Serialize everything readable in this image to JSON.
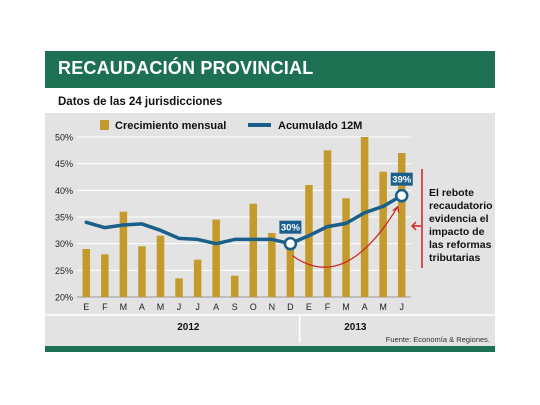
{
  "header": {
    "title": "RECAUDACIÓN PROVINCIAL"
  },
  "subtitle": "Datos de las 24 jurisdicciones",
  "source": "Fuente: Economía & Regiones.",
  "annotation": {
    "lines": [
      "El rebote",
      "recaudatorio",
      "evidencia el",
      "impacto de",
      "las reformas",
      "tributarias"
    ]
  },
  "colors": {
    "bar": "#c49a2c",
    "line": "#1a5f8a",
    "header": "#1d7152",
    "arrow": "#cc2222"
  },
  "chart_data": {
    "type": "bar",
    "title": "",
    "categories": [
      "E",
      "F",
      "M",
      "A",
      "M",
      "J",
      "J",
      "A",
      "S",
      "O",
      "N",
      "D",
      "E",
      "F",
      "M",
      "A",
      "M",
      "J"
    ],
    "year_groups": [
      {
        "label": "2012",
        "count": 12
      },
      {
        "label": "2013",
        "count": 6
      }
    ],
    "ylim": [
      20,
      50
    ],
    "yticks": [
      "20%",
      "25%",
      "30%",
      "35%",
      "40%",
      "45%",
      "50%"
    ],
    "grid": true,
    "legend": {
      "position": "top",
      "entries": [
        "Crecimiento mensual",
        "Acumulado 12M"
      ]
    },
    "series": [
      {
        "name": "Crecimiento mensual",
        "type": "bar",
        "values": [
          29,
          28,
          36,
          29.5,
          31.5,
          23.5,
          27,
          34.5,
          24,
          37.5,
          32,
          31,
          41,
          47.5,
          38.5,
          50,
          43.5,
          47
        ]
      },
      {
        "name": "Acumulado 12M",
        "type": "line",
        "values": [
          34,
          33,
          33.5,
          33.7,
          32.5,
          31,
          30.8,
          30,
          30.8,
          30.8,
          30.8,
          30,
          31.5,
          33.2,
          33.8,
          35.8,
          37,
          39
        ]
      }
    ],
    "markers": [
      {
        "index": 11,
        "label": "30%"
      },
      {
        "index": 17,
        "label": "39%"
      }
    ]
  }
}
